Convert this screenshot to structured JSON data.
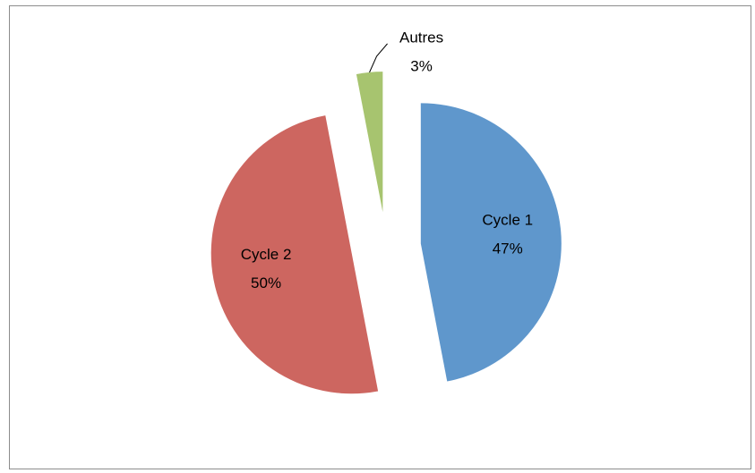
{
  "chart_data": {
    "type": "pie",
    "categories": [
      "Cycle 1",
      "Cycle 2",
      "Autres"
    ],
    "values": [
      47,
      50,
      3
    ],
    "value_labels": [
      "47%",
      "50%",
      "3%"
    ],
    "colors": [
      "#5f97cc",
      "#cd6660",
      "#a7c46f"
    ],
    "exploded": true
  }
}
